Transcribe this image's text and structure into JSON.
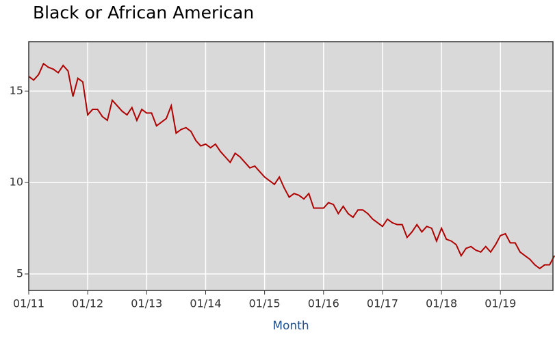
{
  "chart_data": {
    "type": "line",
    "title": "Black or African American",
    "x_label": "Month",
    "x": [
      "01/11",
      "02/11",
      "03/11",
      "04/11",
      "05/11",
      "06/11",
      "07/11",
      "08/11",
      "09/11",
      "10/11",
      "11/11",
      "12/11",
      "01/12",
      "02/12",
      "03/12",
      "04/12",
      "05/12",
      "06/12",
      "07/12",
      "08/12",
      "09/12",
      "10/12",
      "11/12",
      "12/12",
      "01/13",
      "02/13",
      "03/13",
      "04/13",
      "05/13",
      "06/13",
      "07/13",
      "08/13",
      "09/13",
      "10/13",
      "11/13",
      "12/13",
      "01/14",
      "02/14",
      "03/14",
      "04/14",
      "05/14",
      "06/14",
      "07/14",
      "08/14",
      "09/14",
      "10/14",
      "11/14",
      "12/14",
      "01/15",
      "02/15",
      "03/15",
      "04/15",
      "05/15",
      "06/15",
      "07/15",
      "08/15",
      "09/15",
      "10/15",
      "11/15",
      "12/15",
      "01/16",
      "02/16",
      "03/16",
      "04/16",
      "05/16",
      "06/16",
      "07/16",
      "08/16",
      "09/16",
      "10/16",
      "11/16",
      "12/16",
      "01/17",
      "02/17",
      "03/17",
      "04/17",
      "05/17",
      "06/17",
      "07/17",
      "08/17",
      "09/17",
      "10/17",
      "11/17",
      "12/17",
      "01/18",
      "02/18",
      "03/18",
      "04/18",
      "05/18",
      "06/18",
      "07/18",
      "08/18",
      "09/18",
      "10/18",
      "11/18",
      "12/18",
      "01/19",
      "02/19",
      "03/19",
      "04/19",
      "05/19",
      "06/19",
      "07/19",
      "08/19",
      "09/19",
      "10/19",
      "11/19",
      "12/19"
    ],
    "series": [
      {
        "name": "Black or African American",
        "color": "#b00000",
        "values": [
          15.8,
          15.6,
          15.9,
          16.5,
          16.3,
          16.2,
          16.0,
          16.4,
          16.1,
          14.7,
          15.7,
          15.5,
          13.7,
          14.0,
          14.0,
          13.6,
          13.4,
          14.5,
          14.2,
          13.9,
          13.7,
          14.1,
          13.4,
          14.0,
          13.8,
          13.8,
          13.1,
          13.3,
          13.5,
          14.2,
          12.7,
          12.9,
          13.0,
          12.8,
          12.3,
          12.0,
          12.1,
          11.9,
          12.1,
          11.7,
          11.4,
          11.1,
          11.6,
          11.4,
          11.1,
          10.8,
          10.9,
          10.6,
          10.3,
          10.1,
          9.9,
          10.3,
          9.7,
          9.2,
          9.4,
          9.3,
          9.1,
          9.4,
          8.6,
          8.6,
          8.6,
          8.9,
          8.8,
          8.3,
          8.7,
          8.3,
          8.1,
          8.5,
          8.5,
          8.3,
          8.0,
          7.8,
          7.6,
          8.0,
          7.8,
          7.7,
          7.7,
          7.0,
          7.3,
          7.7,
          7.3,
          7.6,
          7.5,
          6.8,
          7.5,
          6.9,
          6.8,
          6.6,
          6.0,
          6.4,
          6.5,
          6.3,
          6.2,
          6.5,
          6.2,
          6.6,
          7.1,
          7.2,
          6.7,
          6.7,
          6.2,
          6.0,
          5.8,
          5.5,
          5.3,
          5.5,
          5.5,
          6.0
        ]
      }
    ],
    "xticks": [
      "01/11",
      "01/12",
      "01/13",
      "01/14",
      "01/15",
      "01/16",
      "01/17",
      "01/18",
      "01/19"
    ],
    "ylim": [
      4.1,
      17.7
    ],
    "yticks": [
      5,
      10,
      15
    ],
    "grid": true
  }
}
